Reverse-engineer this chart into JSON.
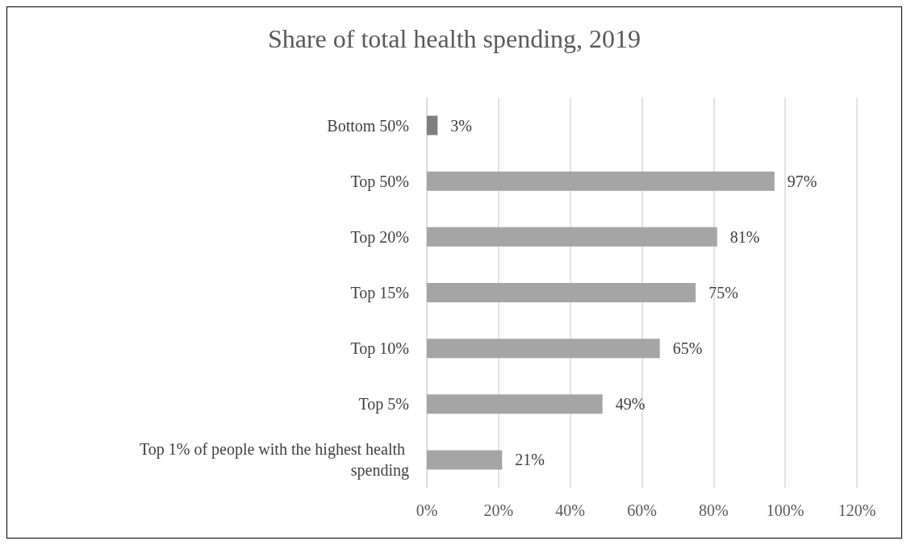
{
  "chart_data": {
    "type": "bar",
    "orientation": "horizontal",
    "title": "Share of total health spending, 2019",
    "categories": [
      "Bottom 50%",
      "Top 50%",
      "Top 20%",
      "Top 15%",
      "Top 10%",
      "Top 5%",
      "Top 1% of people with the highest health spending"
    ],
    "values": [
      3,
      97,
      81,
      75,
      65,
      49,
      21
    ],
    "colors": [
      "#7f7f7f",
      "#a5a5a5",
      "#a5a5a5",
      "#a5a5a5",
      "#a5a5a5",
      "#a5a5a5",
      "#a5a5a5"
    ],
    "value_labels": [
      "3%",
      "97%",
      "81%",
      "75%",
      "65%",
      "49%",
      "21%"
    ],
    "xlim": [
      0,
      120
    ],
    "xticks": [
      {
        "value": 0,
        "label": "0%"
      },
      {
        "value": 20,
        "label": "20%"
      },
      {
        "value": 40,
        "label": "40%"
      },
      {
        "value": 60,
        "label": "60%"
      },
      {
        "value": 80,
        "label": "80%"
      },
      {
        "value": 100,
        "label": "100%"
      },
      {
        "value": 120,
        "label": "120%"
      }
    ],
    "grid": "x"
  }
}
